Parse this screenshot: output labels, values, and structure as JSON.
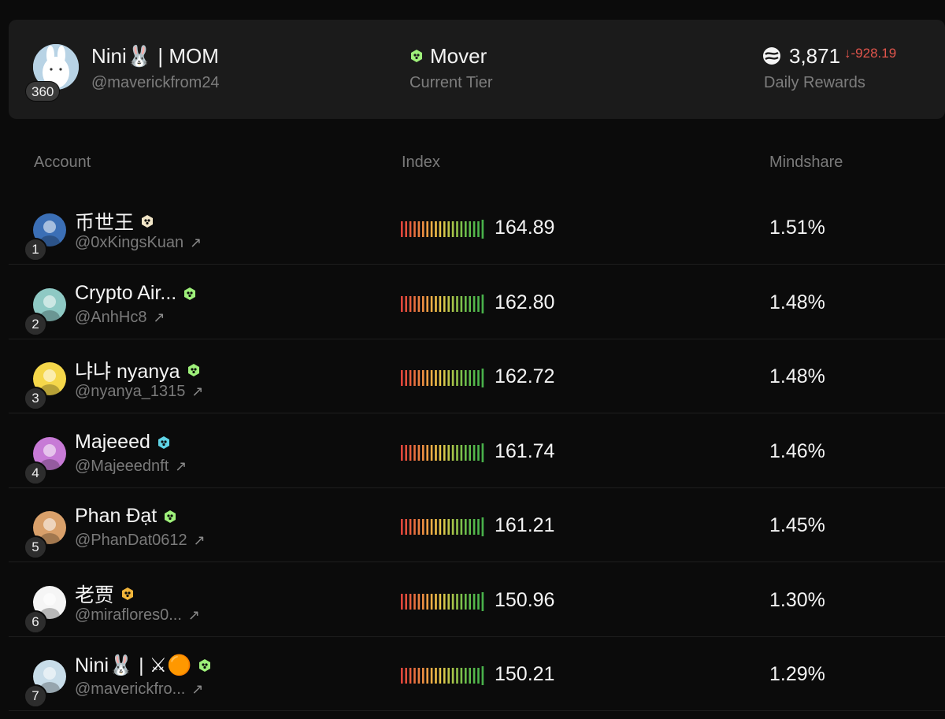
{
  "me": {
    "name": "Nini🐰 | MOM",
    "handle": "@maverickfrom24",
    "rank": "360",
    "tier_name": "Mover",
    "tier_label": "Current Tier",
    "rewards_value": "3,871",
    "rewards_delta": "↓-928.19",
    "rewards_label": "Daily Rewards",
    "rewards_icon": "rewards-token-icon",
    "delta_color": "#e2554c"
  },
  "columns": {
    "account": "Account",
    "index": "Index",
    "mindshare": "Mindshare"
  },
  "rows": [
    {
      "rank": "1",
      "name": "币世王",
      "handle": "@0xKingsKuan",
      "index": "164.89",
      "mindshare": "1.51%",
      "badge_color": "#f2e6c8",
      "avatar_bg": "#3b6fb6"
    },
    {
      "rank": "2",
      "name": "Crypto Air...",
      "handle": "@AnhHc8",
      "index": "162.80",
      "mindshare": "1.48%",
      "badge_color": "#9ef07a",
      "avatar_bg": "#8ec9c4"
    },
    {
      "rank": "3",
      "name": "냐냐 nyanya",
      "handle": "@nyanya_1315",
      "index": "162.72",
      "mindshare": "1.48%",
      "badge_color": "#9ef07a",
      "avatar_bg": "#f5d74a"
    },
    {
      "rank": "4",
      "name": "Majeeed",
      "handle": "@Majeeednft",
      "index": "161.74",
      "mindshare": "1.46%",
      "badge_color": "#5fd4e6",
      "avatar_bg": "#c77ad6"
    },
    {
      "rank": "5",
      "name": "Phan Đạt",
      "handle": "@PhanDat0612",
      "index": "161.21",
      "mindshare": "1.45%",
      "badge_color": "#9ef07a",
      "avatar_bg": "#d9a06a"
    },
    {
      "rank": "6",
      "name": "老贾",
      "handle": "@miraflores0...",
      "index": "150.96",
      "mindshare": "1.30%",
      "badge_color": "#f2b53a",
      "avatar_bg": "#f5f5f5"
    },
    {
      "rank": "7",
      "name": "Nini🐰 | ⚔🟠",
      "handle": "@maverickfro...",
      "index": "150.21",
      "mindshare": "1.29%",
      "badge_color": "#9ef07a",
      "avatar_bg": "#c8dde9"
    }
  ],
  "index_bar_colors": [
    "#e2463c",
    "#e4503c",
    "#e6603d",
    "#e8703e",
    "#ea7f40",
    "#ec8e42",
    "#ee9e44",
    "#efad46",
    "#f0bd48",
    "#e6c44a",
    "#d4c64a",
    "#bfc54a",
    "#a8c44a",
    "#92c34a",
    "#7dc14b",
    "#6cbe4b",
    "#5fbb4b",
    "#55b84b",
    "#4eb54b",
    "#49b24b"
  ]
}
